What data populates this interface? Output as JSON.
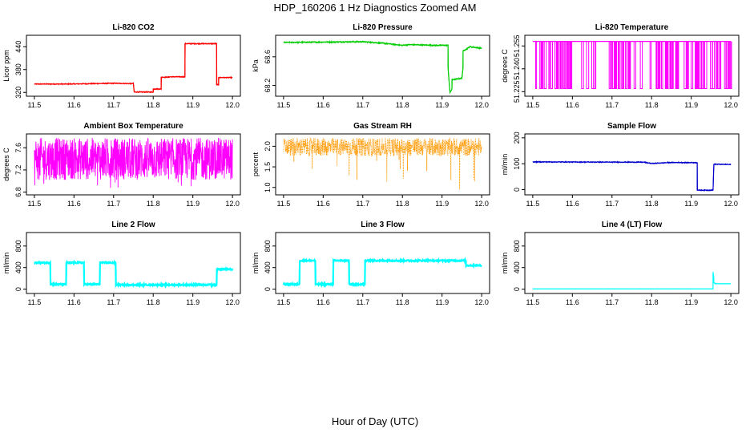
{
  "figure": {
    "title": "HDP_160206  1 Hz Diagnostics Zoomed AM",
    "xlabel": "Hour of Day (UTC)"
  },
  "chart_data": [
    {
      "type": "line",
      "title": "Li-820 CO2",
      "ylabel": "Licor ppm",
      "color": "#ff0000",
      "xlim": [
        11.48,
        12.02
      ],
      "ylim": [
        310,
        470
      ],
      "xticks": [
        "11.5",
        "11.6",
        "11.7",
        "11.8",
        "11.9",
        "12.0"
      ],
      "yticks": [
        "320",
        "380",
        "440"
      ],
      "series": [
        {
          "name": "CO2",
          "x": [
            11.5,
            11.58,
            11.65,
            11.7,
            11.75,
            11.752,
            11.8,
            11.8,
            11.82,
            11.82,
            11.84,
            11.84,
            11.88,
            11.88,
            11.96,
            11.96,
            11.965,
            11.965,
            12.0
          ],
          "y": [
            342,
            342,
            343,
            344,
            343,
            321,
            321,
            329,
            329,
            360,
            360,
            361,
            361,
            448,
            448,
            340,
            340,
            359,
            359
          ],
          "noise": 1.5
        }
      ]
    },
    {
      "type": "line",
      "title": "Li-820 Pressure",
      "ylabel": "kPa",
      "color": "#00cc00",
      "xlim": [
        11.48,
        12.02
      ],
      "ylim": [
        68.05,
        68.9
      ],
      "xticks": [
        "11.5",
        "11.6",
        "11.7",
        "11.8",
        "11.9",
        "12.0"
      ],
      "yticks": [
        "68.2",
        "68.6"
      ],
      "series": [
        {
          "name": "Pressure",
          "x": [
            11.5,
            11.7,
            11.75,
            11.8,
            11.82,
            11.88,
            11.915,
            11.915,
            11.92,
            11.925,
            11.925,
            11.95,
            11.953,
            11.953,
            11.965,
            11.97,
            12.0
          ],
          "y": [
            68.8,
            68.81,
            68.79,
            68.76,
            68.77,
            68.76,
            68.76,
            68.45,
            68.1,
            68.15,
            68.28,
            68.3,
            68.45,
            68.68,
            68.72,
            68.74,
            68.72
          ],
          "noise": 0.01
        }
      ]
    },
    {
      "type": "line",
      "title": "Li-820 Temperature",
      "ylabel": "degrees C",
      "color": "#ff00ff",
      "xlim": [
        11.48,
        12.02
      ],
      "ylim": [
        51.222,
        51.262
      ],
      "xticks": [
        "11.5",
        "11.6",
        "11.7",
        "11.8",
        "11.9",
        "12.0"
      ],
      "yticks": [
        "51.225",
        "51.240",
        "51.255"
      ],
      "series": [
        {
          "name": "Temperature",
          "levels": [
            51.227,
            51.258
          ],
          "base": 51.258
        }
      ]
    },
    {
      "type": "line",
      "title": "Ambient Box Temperature",
      "ylabel": "degrees C",
      "color": "#ff00ff",
      "xlim": [
        11.48,
        12.02
      ],
      "ylim": [
        6.75,
        7.85
      ],
      "xticks": [
        "11.5",
        "11.6",
        "11.7",
        "11.8",
        "11.9",
        "12.0"
      ],
      "yticks": [
        "6.8",
        "7.2",
        "7.6"
      ],
      "series": [
        {
          "name": "Box temp",
          "center": 7.4,
          "spread": 0.38,
          "min": 6.85,
          "max": 7.78
        }
      ]
    },
    {
      "type": "scatter",
      "title": "Gas Stream RH",
      "ylabel": "percent",
      "color": "#ff9900",
      "xlim": [
        11.48,
        12.02
      ],
      "ylim": [
        0.82,
        2.3
      ],
      "xticks": [
        "11.5",
        "11.6",
        "11.7",
        "11.8",
        "11.9",
        "12.0"
      ],
      "yticks": [
        "1.0",
        "1.5",
        "2.0"
      ],
      "series": [
        {
          "name": "RH",
          "center": 1.98,
          "spread": 0.22,
          "min": 0.9,
          "max": 2.25
        }
      ]
    },
    {
      "type": "line",
      "title": "Sample Flow",
      "ylabel": "ml/min",
      "color": "#0000cc",
      "xlim": [
        11.48,
        12.02
      ],
      "ylim": [
        -20,
        215
      ],
      "xticks": [
        "11.5",
        "11.6",
        "11.7",
        "11.8",
        "11.9",
        "12.0"
      ],
      "yticks": [
        "0",
        "100",
        "200"
      ],
      "series": [
        {
          "name": "Sample",
          "x": [
            11.5,
            11.78,
            11.8,
            11.85,
            11.915,
            11.915,
            11.92,
            11.955,
            11.957,
            11.96,
            12.0
          ],
          "y": [
            107,
            106,
            101,
            105,
            104,
            -2,
            -2,
            -2,
            98,
            98,
            97
          ],
          "noise": 2
        }
      ]
    },
    {
      "type": "line",
      "title": "Line 2 Flow",
      "ylabel": "ml/min",
      "color": "#00ffff",
      "xlim": [
        11.48,
        12.02
      ],
      "ylim": [
        -80,
        1050
      ],
      "xticks": [
        "11.5",
        "11.6",
        "11.7",
        "11.8",
        "11.9",
        "12.0"
      ],
      "yticks": [
        "0",
        "400",
        "800"
      ],
      "series": [
        {
          "name": "Line 2",
          "x": [
            11.5,
            11.54,
            11.54,
            11.58,
            11.58,
            11.625,
            11.625,
            11.665,
            11.665,
            11.705,
            11.705,
            11.96,
            11.96,
            12.0
          ],
          "y": [
            490,
            490,
            90,
            90,
            490,
            490,
            90,
            90,
            490,
            490,
            80,
            80,
            370,
            370
          ],
          "noise": 12
        }
      ]
    },
    {
      "type": "line",
      "title": "Line 3 Flow",
      "ylabel": "ml/min",
      "color": "#00ffff",
      "xlim": [
        11.48,
        12.02
      ],
      "ylim": [
        -80,
        1050
      ],
      "xticks": [
        "11.5",
        "11.6",
        "11.7",
        "11.8",
        "11.9",
        "12.0"
      ],
      "yticks": [
        "0",
        "400",
        "800"
      ],
      "series": [
        {
          "name": "Line 3",
          "x": [
            11.5,
            11.54,
            11.54,
            11.58,
            11.58,
            11.625,
            11.625,
            11.665,
            11.665,
            11.705,
            11.705,
            11.96,
            11.96,
            12.0
          ],
          "y": [
            90,
            90,
            530,
            530,
            90,
            90,
            530,
            530,
            90,
            90,
            530,
            530,
            440,
            440
          ],
          "noise": 12
        }
      ]
    },
    {
      "type": "line",
      "title": "Line 4 (LT) Flow",
      "ylabel": "ml/min",
      "color": "#00ffff",
      "xlim": [
        11.48,
        12.02
      ],
      "ylim": [
        -80,
        1050
      ],
      "xticks": [
        "11.5",
        "11.6",
        "11.7",
        "11.8",
        "11.9",
        "12.0"
      ],
      "yticks": [
        "0",
        "400",
        "800"
      ],
      "series": [
        {
          "name": "Line 4",
          "x": [
            11.5,
            11.955,
            11.955,
            11.957,
            11.957,
            11.96,
            11.96,
            12.0
          ],
          "y": [
            5,
            5,
            320,
            200,
            120,
            110,
            100,
            100
          ],
          "noise": 3
        }
      ]
    }
  ]
}
